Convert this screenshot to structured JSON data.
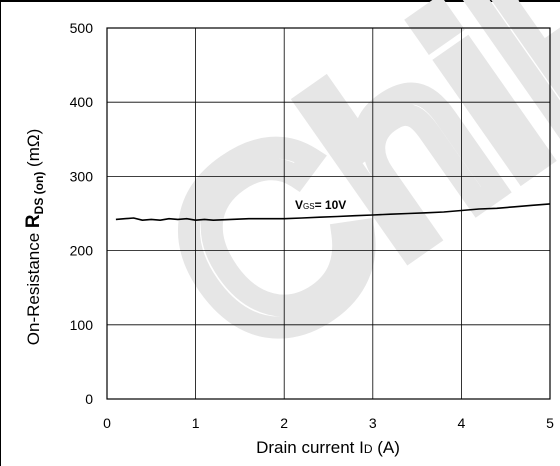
{
  "chart_data": {
    "type": "line",
    "title": "",
    "xlabel": {
      "text": "Drain current I",
      "sub": "D",
      "suffix": " (A)"
    },
    "ylabel": {
      "prefix": "On-Resistance ",
      "bold": "R",
      "sub": "DS (on)",
      "suffix": " (mΩ)"
    },
    "xlim": [
      0,
      5
    ],
    "ylim": [
      0,
      500
    ],
    "xticks": [
      "0",
      "1",
      "2",
      "3",
      "4",
      "5"
    ],
    "yticks": [
      "0",
      "100",
      "200",
      "300",
      "400",
      "500"
    ],
    "grid": true,
    "series": [
      {
        "name": "VGS = 10V",
        "label": {
          "main": "V",
          "sub": "GS",
          "suffix": "= 10V"
        },
        "color": "#000000",
        "x": [
          0.1,
          0.2,
          0.3,
          0.4,
          0.5,
          0.6,
          0.7,
          0.8,
          0.9,
          1.0,
          1.1,
          1.2,
          1.4,
          1.6,
          1.8,
          2.0,
          2.2,
          2.4,
          2.6,
          2.8,
          3.0,
          3.2,
          3.4,
          3.6,
          3.8,
          4.0,
          4.2,
          4.4,
          4.6,
          4.8,
          5.0
        ],
        "y": [
          242,
          243,
          244,
          241,
          242,
          241,
          243,
          242,
          243,
          241,
          242,
          241,
          242,
          243,
          243,
          243,
          244,
          245,
          246,
          247,
          248,
          249,
          250,
          251,
          252,
          254,
          256,
          257,
          259,
          261,
          263
        ]
      }
    ]
  },
  "watermark": {
    "text": "ChiP",
    "color": "#e6e6e6"
  }
}
